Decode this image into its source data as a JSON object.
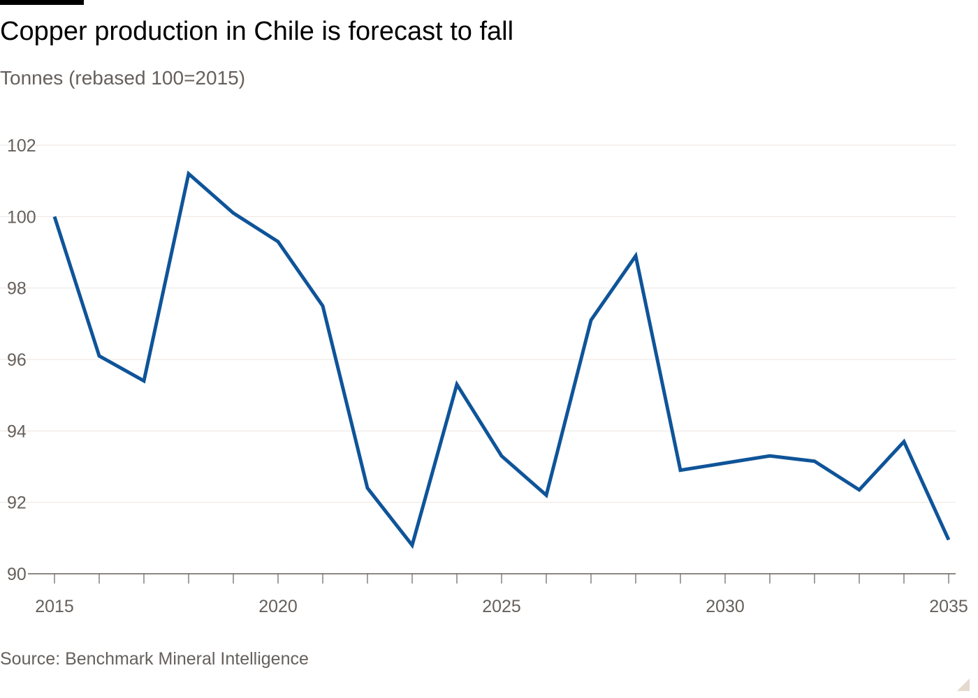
{
  "header": {
    "title": "Copper production in Chile is forecast to fall",
    "subtitle": "Tonnes (rebased 100=2015)"
  },
  "footer": {
    "source": "Source: Benchmark Mineral Intelligence"
  },
  "colors": {
    "line": "#0f5499",
    "grid": "#ebe5df",
    "axis": "#66605c",
    "text": "#66605c"
  },
  "chart_data": {
    "type": "line",
    "title": "Copper production in Chile is forecast to fall",
    "subtitle": "Tonnes (rebased 100=2015)",
    "xlabel": "",
    "ylabel": "",
    "xlim": [
      2015,
      2035
    ],
    "ylim": [
      90,
      102
    ],
    "x_ticks": [
      2015,
      2020,
      2025,
      2030,
      2035
    ],
    "y_ticks": [
      90,
      92,
      94,
      96,
      98,
      100,
      102
    ],
    "grid": "horizontal",
    "legend": "none",
    "x": [
      2015,
      2016,
      2017,
      2018,
      2019,
      2020,
      2021,
      2022,
      2023,
      2024,
      2025,
      2026,
      2027,
      2028,
      2029,
      2030,
      2031,
      2032,
      2033,
      2034,
      2035
    ],
    "series": [
      {
        "values": [
          100.0,
          96.1,
          95.4,
          101.2,
          100.1,
          99.3,
          97.5,
          92.4,
          90.8,
          95.3,
          93.3,
          92.2,
          97.1,
          98.9,
          92.9,
          93.1,
          93.3,
          93.15,
          92.35,
          93.7,
          90.95
        ]
      }
    ]
  }
}
